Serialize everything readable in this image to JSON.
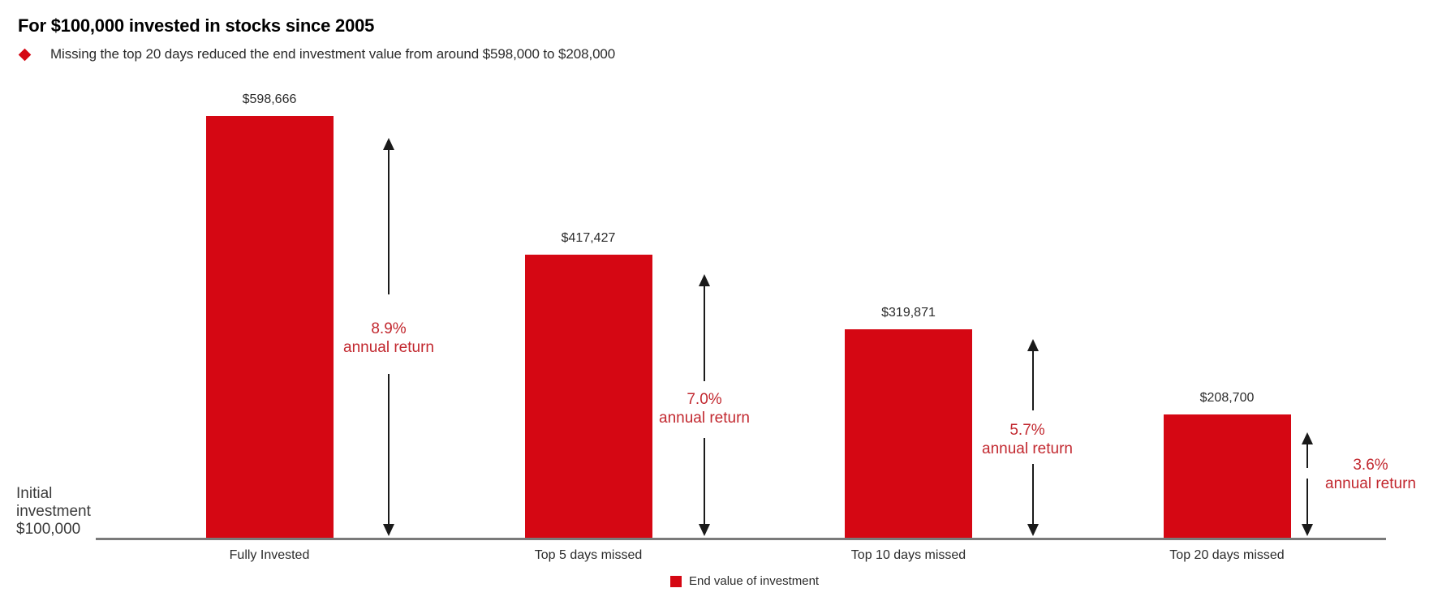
{
  "header": {
    "title": "For $100,000 invested in stocks since 2005",
    "bullet_text": "Missing the top 20 days reduced the end investment value from around $598,000 to $208,000"
  },
  "colors": {
    "bar_red": "#d50713",
    "annotation_red": "#c2282f",
    "baseline_gray": "#7a7a7a",
    "arrow_black": "#1a1a1a",
    "text_dark": "#2b2b2b",
    "text_black": "#000000"
  },
  "chart_data": {
    "type": "bar",
    "title": "For $100,000 invested in stocks since 2005",
    "subtitle": "Missing the top 20 days reduced the end investment value from around $598,000 to $208,000",
    "categories": [
      "Fully Invested",
      "Top 5 days missed",
      "Top 10 days missed",
      "Top 20 days missed"
    ],
    "values": [
      598666,
      417427,
      319871,
      208700
    ],
    "value_labels": [
      "$598,666",
      "$417,427",
      "$319,871",
      "$208,700"
    ],
    "annual_returns": [
      "8.9%",
      "7.0%",
      "5.7%",
      "3.6%"
    ],
    "annual_return_suffix": "annual return",
    "baseline_note": "Initial\ninvestment\n$100,000",
    "legend": [
      "End value of investment"
    ],
    "legend_position": "bottom",
    "xlabel": "",
    "ylabel": "",
    "ylim": [
      47500,
      650000
    ],
    "grid": false
  }
}
